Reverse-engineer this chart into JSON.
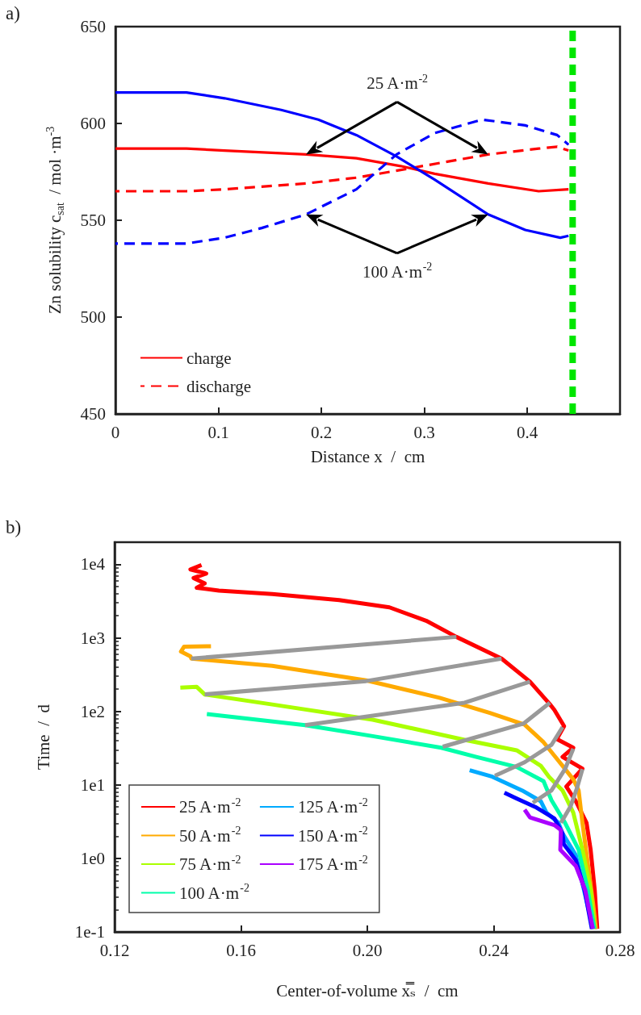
{
  "chart_data": [
    {
      "type": "line",
      "title": "a)",
      "xlabel": "Distance x  /  cm",
      "ylabel": "Zn solubility c$_{sat}$  / mol ·m$^{-3}$",
      "xlim": [
        0,
        0.49
      ],
      "xticks": [
        0,
        0.1,
        0.2,
        0.3,
        0.4
      ],
      "ylim": [
        450,
        650
      ],
      "yticks": [
        450,
        500,
        550,
        600,
        650
      ],
      "grid": false,
      "legend": "bottom left",
      "marker": "none",
      "series": [
        {
          "name": "charge",
          "color": "#ff0000",
          "line_style": "solid",
          "x": [
            0,
            0.069,
            0.106,
            0.185,
            0.234,
            0.277,
            0.31,
            0.362,
            0.411,
            0.44
          ],
          "values": [
            587,
            587,
            586,
            584,
            582,
            578,
            574,
            569,
            565,
            566
          ]
        },
        {
          "name": "discharge",
          "color": "#ff0000",
          "line_style": "dashed",
          "x": [
            0,
            0.069,
            0.106,
            0.185,
            0.234,
            0.277,
            0.362,
            0.411,
            0.429,
            0.44
          ],
          "values": [
            565,
            565,
            566,
            569,
            572,
            576,
            584,
            587,
            588,
            586
          ]
        },
        {
          "color": "#0000ff",
          "line_style": "solid",
          "x": [
            0,
            0.069,
            0.106,
            0.161,
            0.197,
            0.234,
            0.273,
            0.31,
            0.362,
            0.398,
            0.432,
            0.44
          ],
          "values": [
            616,
            616,
            613,
            607,
            602,
            594,
            583,
            571,
            553,
            545,
            541,
            542
          ]
        },
        {
          "color": "#0000ff",
          "line_style": "dashed",
          "x": [
            0,
            0.069,
            0.106,
            0.142,
            0.185,
            0.234,
            0.273,
            0.31,
            0.356,
            0.398,
            0.429,
            0.44
          ],
          "values": [
            538,
            538,
            541,
            546,
            553,
            566,
            584,
            595,
            602,
            599,
            594,
            589
          ]
        }
      ],
      "ref_lines": [
        {
          "axis": "x",
          "value": 0.444,
          "color": "#00e600",
          "line_style": "dashed"
        }
      ],
      "annotations": [
        "25 A·m$^{-2}$",
        "100 A·m$^{-2}$"
      ]
    },
    {
      "type": "line",
      "title": "b)",
      "xlabel": "Center-of-volume x̿ₛ  /  cm",
      "ylabel": "Time  /  d",
      "xlim": [
        0.12,
        0.28
      ],
      "xticks": [
        0.12,
        0.16,
        {
          "value": 0.2,
          "label": "0.20"
        },
        0.24,
        0.28
      ],
      "ylim": [
        0.1,
        20000
      ],
      "yticks": [
        {
          "value": 0.1,
          "label": "1e-1"
        },
        {
          "value": 1,
          "label": "1e0"
        },
        {
          "value": 10,
          "label": "1e1"
        },
        {
          "value": 100,
          "label": "1e2"
        },
        {
          "value": 1000,
          "label": "1e3"
        },
        {
          "value": 10000,
          "label": "1e4"
        }
      ],
      "log": true,
      "grid": false,
      "legend": "bottom left",
      "marker": "none",
      "line_style": "solid",
      "series": [
        {
          "name": "25 A·m$^{-2}$",
          "color": "#ff0000",
          "x": [
            0.1475,
            0.144,
            0.149,
            0.145,
            0.1485,
            0.146,
            0.153,
            0.1699,
            0.1911,
            0.207,
            0.2186,
            0.2282,
            0.2425,
            0.2515,
            0.2578,
            0.2592,
            0.2623,
            0.26,
            0.2652,
            0.2618,
            0.2681,
            0.263,
            0.266,
            0.2694,
            0.2707,
            0.272,
            0.2728
          ],
          "values": [
            9800,
            8500,
            7500,
            6500,
            5500,
            4800,
            4400,
            3950,
            3270,
            2600,
            1710,
            1030,
            522,
            253,
            125,
            105,
            63,
            42,
            32,
            24,
            16.6,
            9.5,
            6.0,
            3.05,
            1.31,
            0.37,
            0.11
          ]
        },
        {
          "name": "50 A·m$^{-2}$",
          "color": "#ffaa00",
          "x": [
            0.1505,
            0.142,
            0.141,
            0.144,
            0.1443,
            0.1699,
            0.1996,
            0.2229,
            0.2388,
            0.2498,
            0.2558,
            0.2592,
            0.2618,
            0.2652,
            0.2669,
            0.2681,
            0.2698,
            0.2715,
            0.2724
          ],
          "values": [
            770,
            760,
            650,
            560,
            522,
            415,
            264,
            153,
            95,
            66,
            38,
            25,
            18.2,
            11.9,
            8.4,
            3.05,
            0.86,
            0.24,
            0.11
          ]
        },
        {
          "name": "75 A·m$^{-2}$",
          "color": "#aaff00",
          "x": [
            0.1408,
            0.146,
            0.1485,
            0.1699,
            0.2017,
            0.2308,
            0.2473,
            0.2549,
            0.2575,
            0.2618,
            0.2652,
            0.2681,
            0.2707,
            0.2719
          ],
          "values": [
            210,
            215,
            170,
            124,
            77,
            41,
            29.5,
            18.2,
            12.9,
            8.4,
            4.2,
            1.31,
            0.37,
            0.11
          ]
        },
        {
          "name": "100 A·m$^{-2}$",
          "color": "#00ffaa",
          "x": [
            0.1492,
            0.1803,
            0.2017,
            0.2234,
            0.2345,
            0.2473,
            0.2558,
            0.2583,
            0.2626,
            0.2669,
            0.2698,
            0.2719
          ],
          "values": [
            92,
            65,
            46,
            32,
            24,
            17.5,
            11.2,
            6.2,
            3.05,
            1.31,
            0.37,
            0.11
          ]
        },
        {
          "name": "125 A·m$^{-2}$",
          "color": "#00aaff",
          "x": [
            0.2324,
            0.2396,
            0.249,
            0.2549,
            0.2567,
            0.2605,
            0.2618,
            0.266,
            0.2686,
            0.2715
          ],
          "values": [
            15.8,
            12.9,
            8.4,
            6.0,
            4.2,
            3.05,
            2.19,
            1.11,
            0.37,
            0.11
          ]
        },
        {
          "name": "150 A·m$^{-2}$",
          "color": "#0000ff",
          "x": [
            0.2434,
            0.2473,
            0.2532,
            0.2592,
            0.2618,
            0.2622,
            0.266,
            0.2688,
            0.2711
          ],
          "values": [
            7.8,
            6.5,
            5.0,
            3.5,
            2.19,
            1.56,
            0.95,
            0.37,
            0.11
          ]
        },
        {
          "name": "175 A·m$^{-2}$",
          "color": "#aa00ff",
          "x": [
            0.2498,
            0.2515,
            0.2592,
            0.2613,
            0.2611,
            0.266,
            0.269,
            0.2714
          ],
          "values": [
            4.6,
            3.6,
            2.84,
            2.43,
            1.31,
            0.79,
            0.37,
            0.11
          ]
        },
        {
          "color": "#999999",
          "x": [
            0.1443,
            0.2282
          ],
          "values": [
            522,
            1030
          ]
        },
        {
          "color": "#999999",
          "x": [
            0.1485,
            0.1996,
            0.2425
          ],
          "values": [
            170,
            258,
            522
          ]
        },
        {
          "color": "#999999",
          "x": [
            0.1803,
            0.2308,
            0.2515
          ],
          "values": [
            65,
            131,
            253
          ]
        },
        {
          "color": "#999999",
          "x": [
            0.2239,
            0.2494,
            0.2578
          ],
          "values": [
            33,
            68,
            131
          ]
        },
        {
          "color": "#999999",
          "x": [
            0.2404,
            0.2498,
            0.2583,
            0.2618
          ],
          "values": [
            13.3,
            20.3,
            35,
            61
          ]
        },
        {
          "color": "#999999",
          "x": [
            0.2524,
            0.2583,
            0.2626,
            0.2652
          ],
          "values": [
            5.7,
            8.4,
            16.4,
            31
          ]
        },
        {
          "color": "#999999",
          "x": [
            0.2613,
            0.2643,
            0.2664,
            0.2681
          ],
          "values": [
            3.05,
            5.05,
            9.1,
            16.4
          ]
        }
      ]
    }
  ]
}
